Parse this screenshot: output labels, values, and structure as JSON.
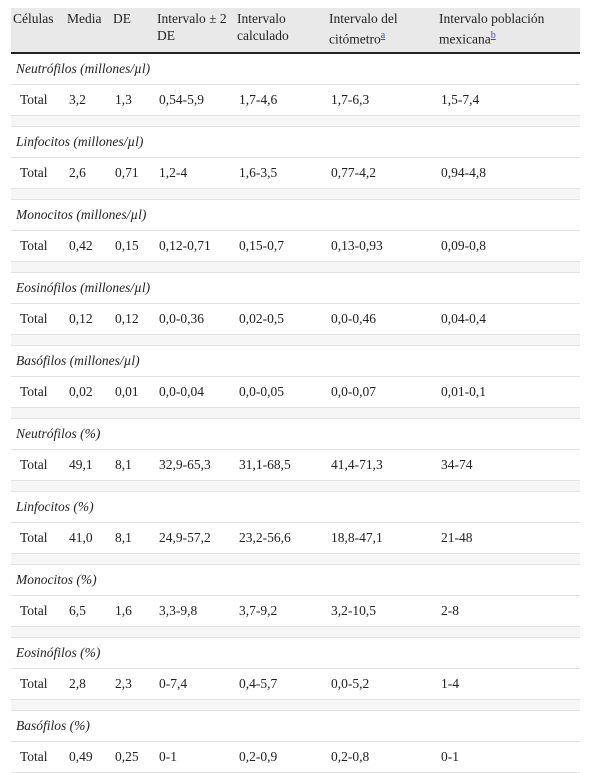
{
  "table": {
    "header": [
      {
        "label": "Células"
      },
      {
        "label": "Media"
      },
      {
        "label": "DE"
      },
      {
        "label": "Intervalo ± 2 DE"
      },
      {
        "label": "Intervalo calculado"
      },
      {
        "label": "Intervalo del citómetro",
        "note": "a"
      },
      {
        "label": "Intervalo población mexicana",
        "note": "b"
      }
    ],
    "sections": [
      {
        "title": "Neutrófilos (millones/µl)",
        "row": [
          "Total",
          "3,2",
          "1,3",
          "0,54-5,9",
          "1,7-4,6",
          "1,7-6,3",
          "1,5-7,4"
        ]
      },
      {
        "title": "Linfocitos (millones/µl)",
        "row": [
          "Total",
          "2,6",
          "0,71",
          "1,2-4",
          "1,6-3,5",
          "0,77-4,2",
          "0,94-4,8"
        ]
      },
      {
        "title": "Monocitos (millones/µl)",
        "row": [
          "Total",
          "0,42",
          "0,15",
          "0,12-0,71",
          "0,15-0,7",
          "0,13-0,93",
          "0,09-0,8"
        ]
      },
      {
        "title": "Eosinófilos (millones/µl)",
        "row": [
          "Total",
          "0,12",
          "0,12",
          "0,0-0,36",
          "0,02-0,5",
          "0,0-0,46",
          "0,04-0,4"
        ]
      },
      {
        "title": "Basófilos (millones/µl)",
        "row": [
          "Total",
          "0,02",
          "0,01",
          "0,0-0,04",
          "0,0-0,05",
          "0,0-0,07",
          "0,01-0,1"
        ]
      },
      {
        "title": "Neutrófilos (%)",
        "row": [
          "Total",
          "49,1",
          "8,1",
          "32,9-65,3",
          "31,1-68,5",
          "41,4-71,3",
          "34-74"
        ]
      },
      {
        "title": "Linfocitos (%)",
        "row": [
          "Total",
          "41,0",
          "8,1",
          "24,9-57,2",
          "23,2-56,6",
          "18,8-47,1",
          "21-48"
        ]
      },
      {
        "title": "Monocitos (%)",
        "row": [
          "Total",
          "6,5",
          "1,6",
          "3,3-9,8",
          "3,7-9,2",
          "3,2-10,5",
          "2-8"
        ]
      },
      {
        "title": "Eosinófilos (%)",
        "row": [
          "Total",
          "2,8",
          "2,3",
          "0-7,4",
          "0,4-5,7",
          "0,0-5,2",
          "1-4"
        ]
      },
      {
        "title": "Basófilos (%)",
        "row": [
          "Total",
          "0,49",
          "0,25",
          "0-1",
          "0,2-0,9",
          "0,2-0,8",
          "0-1"
        ]
      }
    ]
  }
}
